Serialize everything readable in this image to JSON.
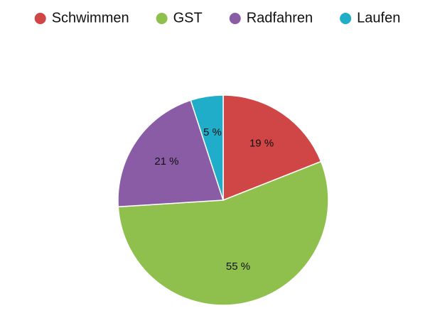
{
  "chart_data": {
    "type": "pie",
    "categories": [
      "Schwimmen",
      "GST",
      "Radfahren",
      "Laufen"
    ],
    "values": [
      19,
      55,
      21,
      5
    ],
    "value_labels": [
      "19 %",
      "55 %",
      "21 %",
      "5 %"
    ],
    "colors": [
      "#d04545",
      "#8fc04d",
      "#8a5ca6",
      "#1fadc9"
    ],
    "legend": "top"
  }
}
